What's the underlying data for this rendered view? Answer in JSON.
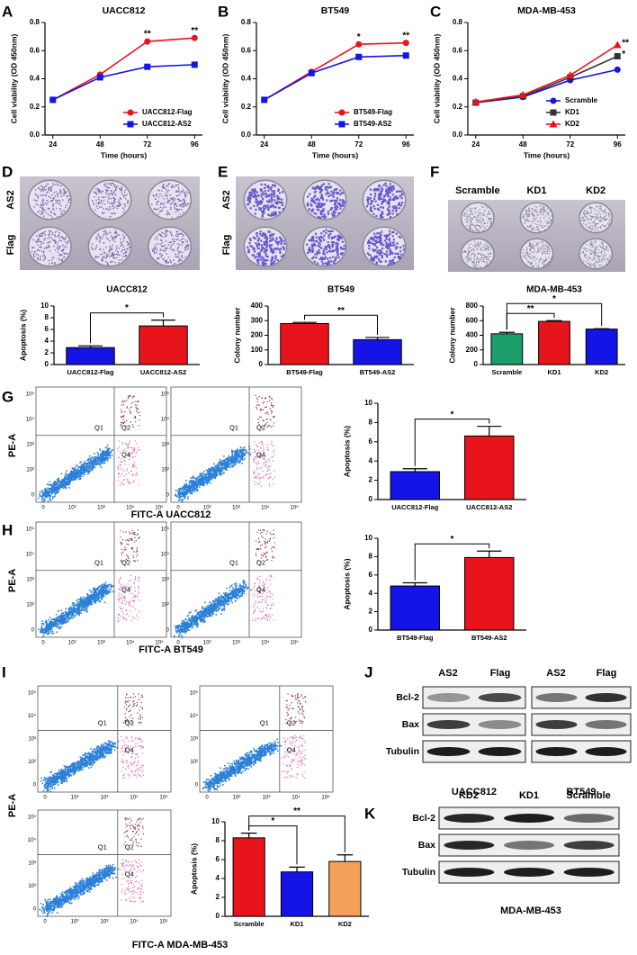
{
  "panels": [
    "A",
    "B",
    "C",
    "D",
    "E",
    "F",
    "G",
    "H",
    "I",
    "J",
    "K"
  ],
  "chart_data": [
    {
      "type": "line",
      "title": "UACC812",
      "x_label": "Time (hours)",
      "y_label": "Cell viability (OD 450nm)",
      "x": [
        24,
        48,
        72,
        96
      ],
      "xlim": [
        20,
        100
      ],
      "xticks": [
        24,
        48,
        72,
        96
      ],
      "ylim": [
        0,
        0.8
      ],
      "yticks": [
        {
          "value": 0,
          "label": "0.0"
        },
        0.2,
        0.4,
        0.6,
        0.8
      ],
      "legend": "lower right",
      "series": [
        {
          "name": "UACC812-Flag",
          "color": "#e8141c",
          "marker": "circle",
          "values": [
            0.25,
            0.43,
            0.665,
            0.69
          ]
        },
        {
          "name": "UACC812-AS2",
          "color": "#1414e6",
          "marker": "square",
          "values": [
            0.25,
            0.41,
            0.485,
            0.5
          ]
        }
      ],
      "annotations": [
        {
          "x": 72,
          "label": "**"
        },
        {
          "x": 96,
          "label": "**"
        }
      ]
    },
    {
      "type": "line",
      "title": "BT549",
      "x_label": "Time (hours)",
      "y_label": "Cell viability (OD 450nm)",
      "x": [
        24,
        48,
        72,
        96
      ],
      "xlim": [
        20,
        100
      ],
      "xticks": [
        24,
        48,
        72,
        96
      ],
      "ylim": [
        0,
        0.8
      ],
      "yticks": [
        {
          "value": 0,
          "label": "0.0"
        },
        0.2,
        0.4,
        0.6,
        0.8
      ],
      "legend": "lower right",
      "series": [
        {
          "name": "BT549-Flag",
          "color": "#e8141c",
          "marker": "circle",
          "values": [
            0.25,
            0.45,
            0.645,
            0.655
          ]
        },
        {
          "name": "BT549-AS2",
          "color": "#1414e6",
          "marker": "square",
          "values": [
            0.25,
            0.44,
            0.555,
            0.565
          ]
        }
      ],
      "annotations": [
        {
          "x": 72,
          "label": "*"
        },
        {
          "x": 96,
          "label": "**"
        }
      ]
    },
    {
      "type": "line",
      "title": "MDA-MB-453",
      "x_label": "Time (hours)",
      "y_label": "Cell viability (OD 450nm)",
      "x": [
        24,
        48,
        72,
        96
      ],
      "xlim": [
        20,
        100
      ],
      "xticks": [
        24,
        48,
        72,
        96
      ],
      "ylim": [
        0,
        0.8
      ],
      "yticks": [
        {
          "value": 0,
          "label": "0.0"
        },
        0.2,
        0.4,
        0.6,
        0.8
      ],
      "legend": "lower right",
      "series": [
        {
          "name": "Scramble",
          "color": "#1414e6",
          "marker": "circle",
          "values": [
            0.23,
            0.27,
            0.39,
            0.465
          ]
        },
        {
          "name": "KD1",
          "color": "#333333",
          "marker": "square",
          "values": [
            0.23,
            0.275,
            0.41,
            0.56
          ]
        },
        {
          "name": "KD2",
          "color": "#e8141c",
          "marker": "triangle",
          "values": [
            0.235,
            0.285,
            0.425,
            0.64
          ]
        }
      ],
      "annotations": [
        {
          "x": 96,
          "series": "KD2",
          "label": "**"
        },
        {
          "x": 96,
          "series": "KD1",
          "label": "*"
        }
      ]
    },
    {
      "type": "bar",
      "title": "UACC812",
      "y_label": "Apoptosis (%)",
      "categories": [
        "UACC812-Flag",
        "UACC812-AS2"
      ],
      "values": [
        2.9,
        6.6
      ],
      "errors": [
        0.3,
        1.0
      ],
      "colors": [
        "#1414e6",
        "#e8141c"
      ],
      "ylim": [
        0,
        10
      ],
      "yticks": [
        0,
        2,
        4,
        6,
        8,
        10
      ],
      "significance": [
        {
          "between": [
            "UACC812-Flag",
            "UACC812-AS2"
          ],
          "label": "*"
        }
      ]
    },
    {
      "type": "bar",
      "title": "BT549",
      "y_label": "Colony number",
      "categories": [
        "BT549-Flag",
        "BT549-AS2"
      ],
      "values": [
        280,
        170
      ],
      "errors": [
        8,
        15
      ],
      "colors": [
        "#e8141c",
        "#1414e6"
      ],
      "ylim": [
        0,
        400
      ],
      "yticks": [
        0,
        100,
        200,
        300,
        400
      ],
      "significance": [
        {
          "between": [
            "BT549-Flag",
            "BT549-AS2"
          ],
          "label": "**"
        }
      ]
    },
    {
      "type": "bar",
      "title": "MDA-MB-453",
      "y_label": "Colony number",
      "categories": [
        "Scramble",
        "KD1",
        "KD2"
      ],
      "values": [
        420,
        590,
        485
      ],
      "errors": [
        20,
        10,
        5
      ],
      "colors": [
        "#1a9e6a",
        "#e8141c",
        "#1414e6"
      ],
      "ylim": [
        0,
        800
      ],
      "yticks": [
        0,
        200,
        400,
        600,
        800
      ],
      "significance": [
        {
          "between": [
            "Scramble",
            "KD1"
          ],
          "label": "**"
        },
        {
          "between": [
            "Scramble",
            "KD2"
          ],
          "label": "*"
        }
      ]
    },
    {
      "type": "bar",
      "y_label": "Apoptosis (%)",
      "categories": [
        "UACC812-Flag",
        "UACC812-AS2"
      ],
      "values": [
        2.9,
        6.6
      ],
      "errors": [
        0.3,
        1.0
      ],
      "colors": [
        "#1414e6",
        "#e8141c"
      ],
      "ylim": [
        0,
        10
      ],
      "yticks": [
        0,
        2,
        4,
        6,
        8,
        10
      ],
      "significance": [
        {
          "between": [
            "UACC812-Flag",
            "UACC812-AS2"
          ],
          "label": "*"
        }
      ]
    },
    {
      "type": "bar",
      "y_label": "Apoptosis (%)",
      "categories": [
        "BT549-Flag",
        "BT549-AS2"
      ],
      "values": [
        4.8,
        7.9
      ],
      "errors": [
        0.35,
        0.7
      ],
      "colors": [
        "#1414e6",
        "#e8141c"
      ],
      "ylim": [
        0,
        10
      ],
      "yticks": [
        0,
        2,
        4,
        6,
        8,
        10
      ],
      "significance": [
        {
          "between": [
            "BT549-Flag",
            "BT549-AS2"
          ],
          "label": "*"
        }
      ]
    },
    {
      "type": "bar",
      "y_label": "Apoptosis (%)",
      "categories": [
        "Scramble",
        "KD1",
        "KD2"
      ],
      "values": [
        8.3,
        4.7,
        5.8
      ],
      "errors": [
        0.5,
        0.5,
        0.7
      ],
      "colors": [
        "#e8141c",
        "#1414e6",
        "#f5a05a"
      ],
      "ylim": [
        0,
        10
      ],
      "yticks": [
        0,
        2,
        4,
        6,
        8,
        10
      ],
      "significance": [
        {
          "between": [
            "Scramble",
            "KD1"
          ],
          "label": "*"
        },
        {
          "between": [
            "Scramble",
            "KD2"
          ],
          "label": "**"
        }
      ]
    }
  ],
  "colony_photos": {
    "D": {
      "rows": [
        "AS2",
        "Flag"
      ]
    },
    "E": {
      "rows": [
        "AS2",
        "Flag"
      ]
    },
    "F": {
      "columns": [
        "Scramble",
        "KD1",
        "KD2"
      ]
    }
  },
  "flow": {
    "y_label": "PE-A",
    "quadrants": [
      "Q1",
      "Q2",
      "Q4"
    ],
    "x_ticks": [
      "0",
      "10²",
      "10³",
      "10⁴",
      "10⁵"
    ],
    "y_ticks": [
      "0",
      "10²",
      "10³",
      "10⁴",
      "10⁵"
    ],
    "groups": [
      {
        "x_label": "FITC-A  UACC812"
      },
      {
        "x_label": "FITC-A  BT549"
      },
      {
        "x_label": "FITC-A  MDA-MB-453"
      }
    ]
  },
  "blots": {
    "J": {
      "columns": [
        "AS2",
        "Flag",
        "AS2",
        "Flag"
      ],
      "rows": [
        "Bcl-2",
        "Bax",
        "Tubulin"
      ],
      "captions": [
        "UACC812",
        "BT549"
      ]
    },
    "K": {
      "columns": [
        "KD2",
        "KD1",
        "Scramble"
      ],
      "rows": [
        "Bcl-2",
        "Bax",
        "Tubulin"
      ],
      "captions": [
        "MDA-MB-453"
      ]
    }
  }
}
